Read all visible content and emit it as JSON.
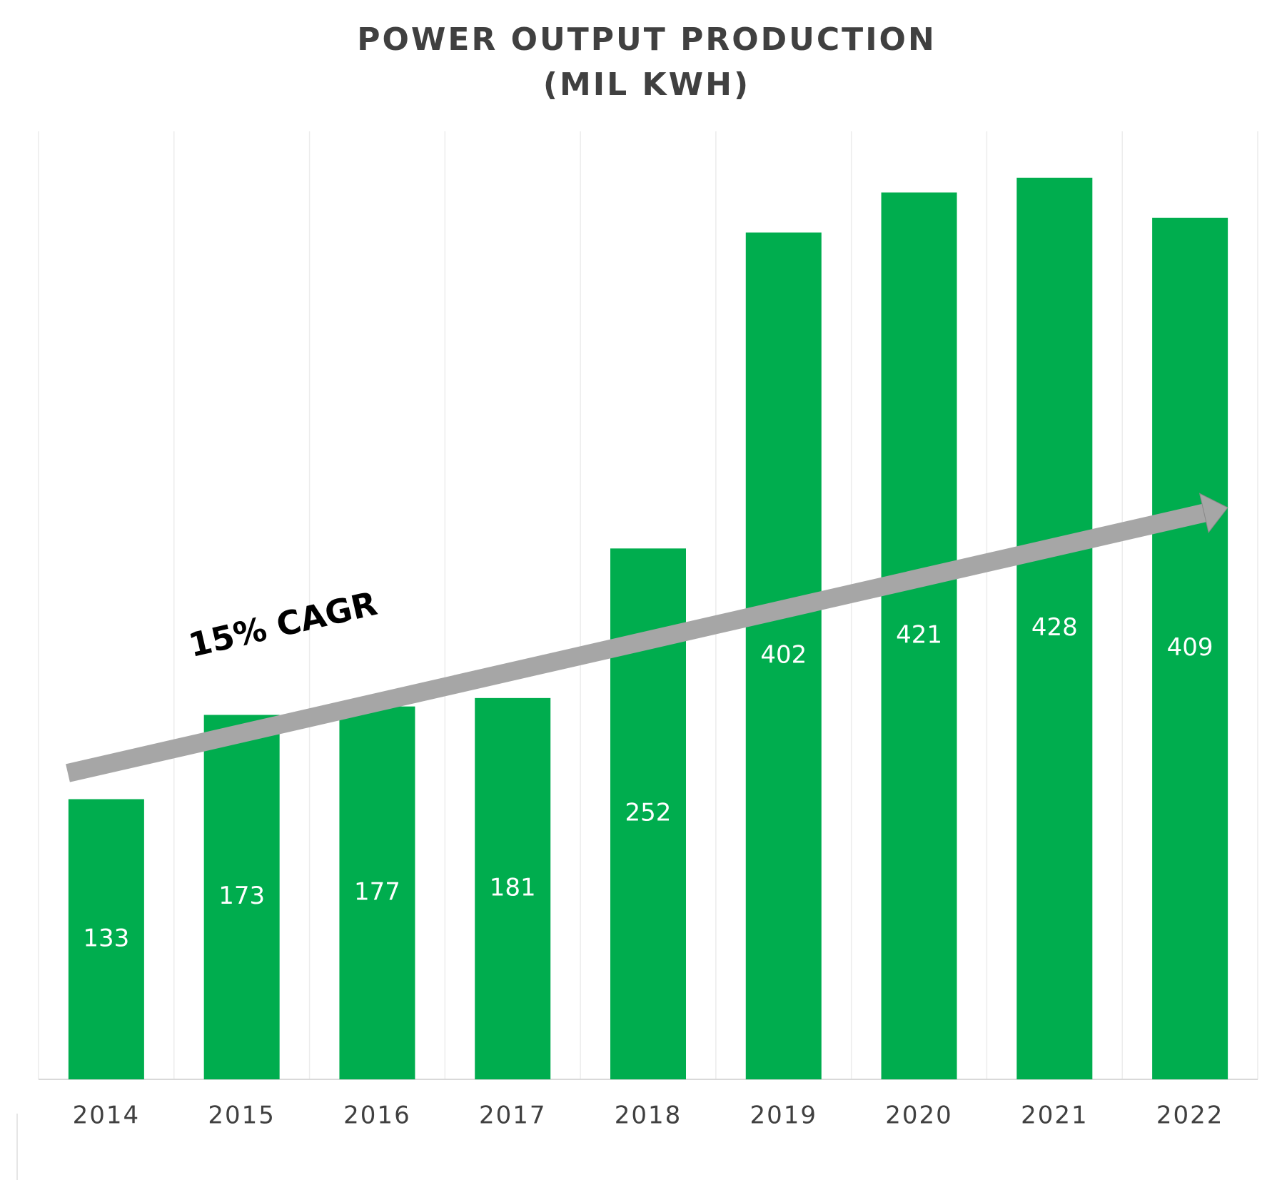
{
  "chart_data": {
    "type": "bar",
    "title": "POWER OUTPUT PRODUCTION",
    "subtitle": "(MIL KWH)",
    "categories": [
      "2014",
      "2015",
      "2016",
      "2017",
      "2018",
      "2019",
      "2020",
      "2021",
      "2022"
    ],
    "values": [
      133,
      173,
      177,
      181,
      252,
      402,
      421,
      428,
      409
    ],
    "color": "#00ad4e",
    "ylim": [
      0,
      450
    ],
    "annotation": "15% CAGR"
  }
}
